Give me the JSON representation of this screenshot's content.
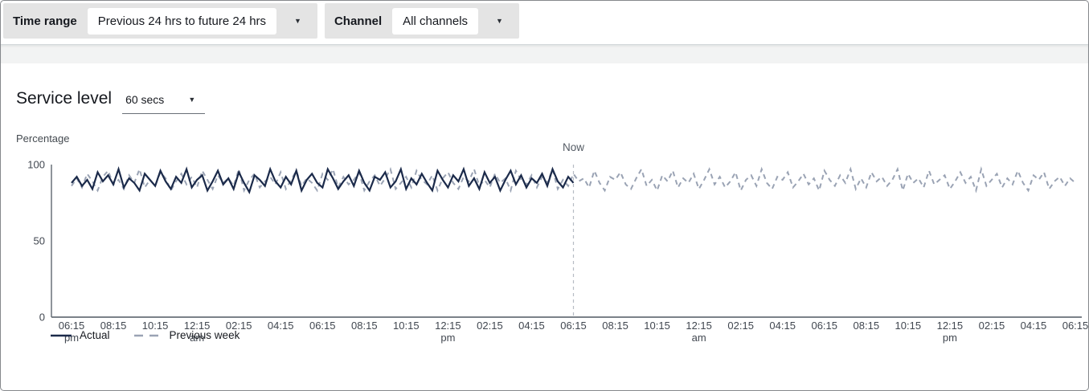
{
  "filters": {
    "time_range": {
      "label": "Time range",
      "value": "Previous 24 hrs to future 24 hrs"
    },
    "channel": {
      "label": "Channel",
      "value": "All channels"
    }
  },
  "header": {
    "title": "Service level",
    "threshold_value": "60 secs"
  },
  "icons": {
    "dropdown_caret": "▼"
  },
  "colors": {
    "actual_navy": "#1b2a4a",
    "previous_week_slate": "#9aa3b4",
    "panel_gray": "#e4e4e4",
    "band_gray": "#f2f3f3",
    "axis_gray": "#687078",
    "tick_text": "#414750",
    "muted_text": "#545b64",
    "now_line": "#b6bcc4"
  },
  "chart_data": {
    "type": "line",
    "title": "Service level",
    "xlabel": "",
    "ylabel": "Percentage",
    "ylim": [
      0,
      100
    ],
    "y_ticks": [
      100,
      50,
      0
    ],
    "grid": false,
    "legend_position": "bottom-left",
    "x_unit": "15-minute intervals over previous 24 hrs to future 24 hrs",
    "now": {
      "label": "Now",
      "hour": 24
    },
    "x_ticks": [
      {
        "h": 0,
        "label": "06:15",
        "sub": "pm"
      },
      {
        "h": 2,
        "label": "08:15"
      },
      {
        "h": 4,
        "label": "10:15"
      },
      {
        "h": 6,
        "label": "12:15",
        "sub": "am"
      },
      {
        "h": 8,
        "label": "02:15"
      },
      {
        "h": 10,
        "label": "04:15"
      },
      {
        "h": 12,
        "label": "06:15"
      },
      {
        "h": 14,
        "label": "08:15"
      },
      {
        "h": 16,
        "label": "10:15"
      },
      {
        "h": 18,
        "label": "12:15",
        "sub": "pm"
      },
      {
        "h": 20,
        "label": "02:15"
      },
      {
        "h": 22,
        "label": "04:15"
      },
      {
        "h": 24,
        "label": "06:15"
      },
      {
        "h": 26,
        "label": "08:15"
      },
      {
        "h": 28,
        "label": "10:15"
      },
      {
        "h": 30,
        "label": "12:15",
        "sub": "am"
      },
      {
        "h": 32,
        "label": "02:15"
      },
      {
        "h": 34,
        "label": "04:15"
      },
      {
        "h": 36,
        "label": "06:15"
      },
      {
        "h": 38,
        "label": "08:15"
      },
      {
        "h": 40,
        "label": "10:15"
      },
      {
        "h": 42,
        "label": "12:15",
        "sub": "pm"
      },
      {
        "h": 44,
        "label": "02:15"
      },
      {
        "h": 46,
        "label": "04:15"
      },
      {
        "h": 48,
        "label": "06:15"
      }
    ],
    "series": [
      {
        "name": "Actual",
        "style": "solid",
        "color": "#1b2a4a",
        "start_hour": 0,
        "interval_minutes": 15,
        "values": [
          88,
          92,
          86,
          90,
          84,
          95,
          89,
          93,
          87,
          97,
          85,
          91,
          88,
          83,
          94,
          90,
          86,
          96,
          89,
          84,
          92,
          88,
          97,
          85,
          90,
          93,
          83,
          89,
          96,
          87,
          91,
          84,
          95,
          88,
          82,
          93,
          90,
          86,
          97,
          89,
          85,
          92,
          87,
          96,
          83,
          90,
          94,
          88,
          85,
          97,
          91,
          84,
          89,
          93,
          86,
          96,
          88,
          83,
          92,
          90,
          95,
          85,
          89,
          97,
          84,
          91,
          87,
          94,
          88,
          83,
          96,
          90,
          85,
          93,
          89,
          97,
          86,
          91,
          84,
          95,
          88,
          92,
          83,
          90,
          96,
          87,
          93,
          85,
          91,
          88,
          94,
          86,
          97,
          89,
          85,
          92,
          88
        ]
      },
      {
        "name": "Previous week",
        "style": "dashed",
        "color": "#9aa3b4",
        "start_hour": 0,
        "interval_minutes": 15,
        "values": [
          86,
          91,
          85,
          94,
          89,
          83,
          92,
          96,
          87,
          90,
          84,
          93,
          88,
          97,
          85,
          90,
          86,
          95,
          91,
          83,
          89,
          94,
          87,
          92,
          85,
          96,
          90,
          84,
          93,
          88,
          91,
          86,
          97,
          83,
          90,
          94,
          85,
          89,
          92,
          87,
          95,
          84,
          90,
          96,
          86,
          91,
          88,
          83,
          94,
          90,
          97,
          85,
          92,
          87,
          90,
          95,
          83,
          89,
          93,
          86,
          91,
          97,
          84,
          88,
          92,
          85,
          96,
          90,
          87,
          93,
          83,
          91,
          95,
          88,
          84,
          92,
          89,
          97,
          86,
          90,
          85,
          94,
          88,
          91,
          83,
          96,
          90,
          87,
          93,
          85,
          92,
          88,
          97,
          84,
          90,
          86,
          94,
          89,
          91,
          85,
          96,
          88,
          83,
          92,
          90,
          95,
          87,
          84,
          91,
          97,
          86,
          90,
          83,
          93,
          89,
          96,
          85,
          91,
          88,
          94,
          84,
          90,
          97,
          87,
          92,
          85,
          89,
          95,
          83,
          90,
          93,
          86,
          97,
          88,
          84,
          92,
          90,
          95,
          85,
          89,
          94,
          87,
          91,
          83,
          96,
          90,
          86,
          93,
          88,
          97,
          84,
          91,
          85,
          95,
          89,
          92,
          86,
          90,
          97,
          83,
          94,
          88,
          91,
          85,
          96,
          87,
          90,
          93,
          84,
          89,
          95,
          88,
          92,
          83,
          97,
          86,
          90,
          94,
          85,
          91,
          87,
          96,
          88,
          83,
          93,
          90,
          95,
          84,
          89,
          92,
          86,
          91,
          88
        ]
      }
    ]
  }
}
